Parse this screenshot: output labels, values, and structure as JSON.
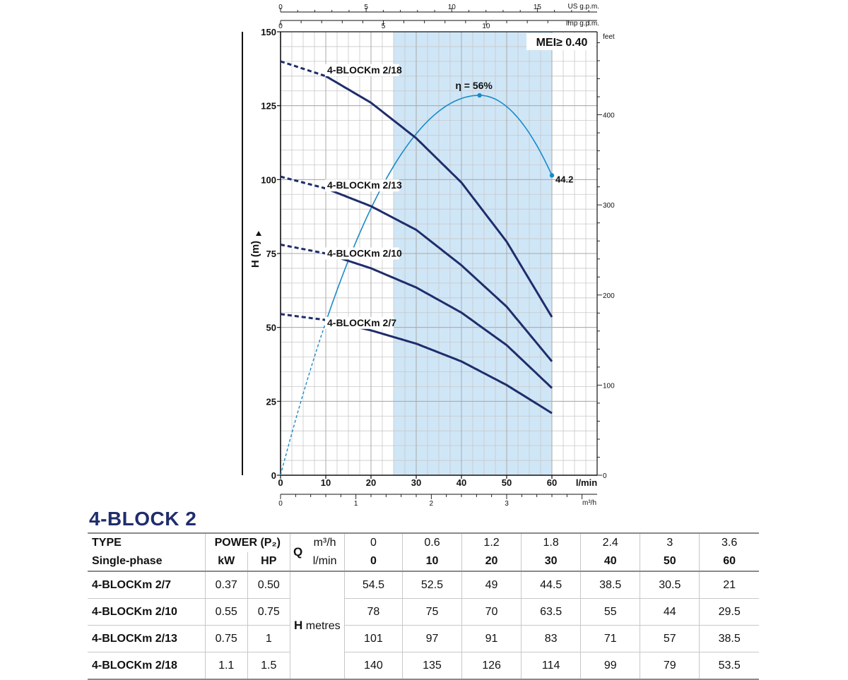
{
  "chart_data": {
    "type": "line",
    "x": [
      0,
      10,
      20,
      30,
      40,
      50,
      60
    ],
    "x_axis": {
      "label": "l/min",
      "range": [
        0,
        70
      ],
      "ticks": [
        0,
        10,
        20,
        30,
        40,
        50,
        60
      ]
    },
    "y_axis": {
      "label": "H (m)",
      "range": [
        0,
        150
      ],
      "ticks": [
        0,
        25,
        50,
        75,
        100,
        125,
        150
      ]
    },
    "secondary_axes": {
      "right": {
        "label": "feet",
        "ticks": [
          0,
          100,
          200,
          300,
          400
        ]
      },
      "top_us": {
        "label": "US g.p.m.",
        "ticks": [
          0,
          5,
          10,
          15
        ]
      },
      "top_imp": {
        "label": "Imp g.p.m.",
        "ticks": [
          0,
          5,
          10
        ]
      },
      "bottom_m3h": {
        "label": "m³/h",
        "ticks": [
          0,
          1,
          2,
          3
        ]
      }
    },
    "series": [
      {
        "name": "4-BLOCKm 2/18",
        "values": [
          140,
          135,
          126,
          114,
          99,
          79,
          53.5
        ]
      },
      {
        "name": "4-BLOCKm 2/13",
        "values": [
          101,
          97,
          91,
          83,
          71,
          57,
          38.5
        ]
      },
      {
        "name": "4-BLOCKm 2/10",
        "values": [
          78,
          75,
          70,
          63.5,
          55,
          44,
          29.5
        ]
      },
      {
        "name": "4-BLOCKm 2/7",
        "values": [
          54.5,
          52.5,
          49,
          44.5,
          38.5,
          30.5,
          21
        ]
      }
    ],
    "efficiency": {
      "label": "η = 56%",
      "end_value_label": "44.2",
      "peak_flow_lmin": 44,
      "peak_value": 56,
      "end_flow_lmin": 60,
      "end_value": 44.2
    },
    "recommended_range_lmin": [
      25,
      60
    ],
    "mei_label": "MEI≥ 0.40",
    "dashed_below_lmin": 10,
    "grid": true,
    "colors": {
      "curve": "#1f2d6b",
      "efficiency": "#1a8ac8",
      "range_fill": "#cfe6f7",
      "grid": "#c8c8c8"
    }
  },
  "table": {
    "title": "4-BLOCK 2",
    "type_label": "TYPE",
    "phase_label": "Single-phase",
    "power_label": "POWER (P₂)",
    "kw_label": "kW",
    "hp_label": "HP",
    "q_label": "Q",
    "m3h_label": "m³/h",
    "lmin_label": "l/min",
    "h_label": "H",
    "metres_label": "metres",
    "q_m3h": [
      "0",
      "0.6",
      "1.2",
      "1.8",
      "2.4",
      "3",
      "3.6"
    ],
    "q_lmin": [
      "0",
      "10",
      "20",
      "30",
      "40",
      "50",
      "60"
    ],
    "rows": [
      {
        "type": "4-BLOCKm 2/7",
        "kw": "0.37",
        "hp": "0.50",
        "h": [
          "54.5",
          "52.5",
          "49",
          "44.5",
          "38.5",
          "30.5",
          "21"
        ]
      },
      {
        "type": "4-BLOCKm 2/10",
        "kw": "0.55",
        "hp": "0.75",
        "h": [
          "78",
          "75",
          "70",
          "63.5",
          "55",
          "44",
          "29.5"
        ]
      },
      {
        "type": "4-BLOCKm 2/13",
        "kw": "0.75",
        "hp": "1",
        "h": [
          "101",
          "97",
          "91",
          "83",
          "71",
          "57",
          "38.5"
        ]
      },
      {
        "type": "4-BLOCKm 2/18",
        "kw": "1.1",
        "hp": "1.5",
        "h": [
          "140",
          "135",
          "126",
          "114",
          "99",
          "79",
          "53.5"
        ]
      }
    ]
  }
}
